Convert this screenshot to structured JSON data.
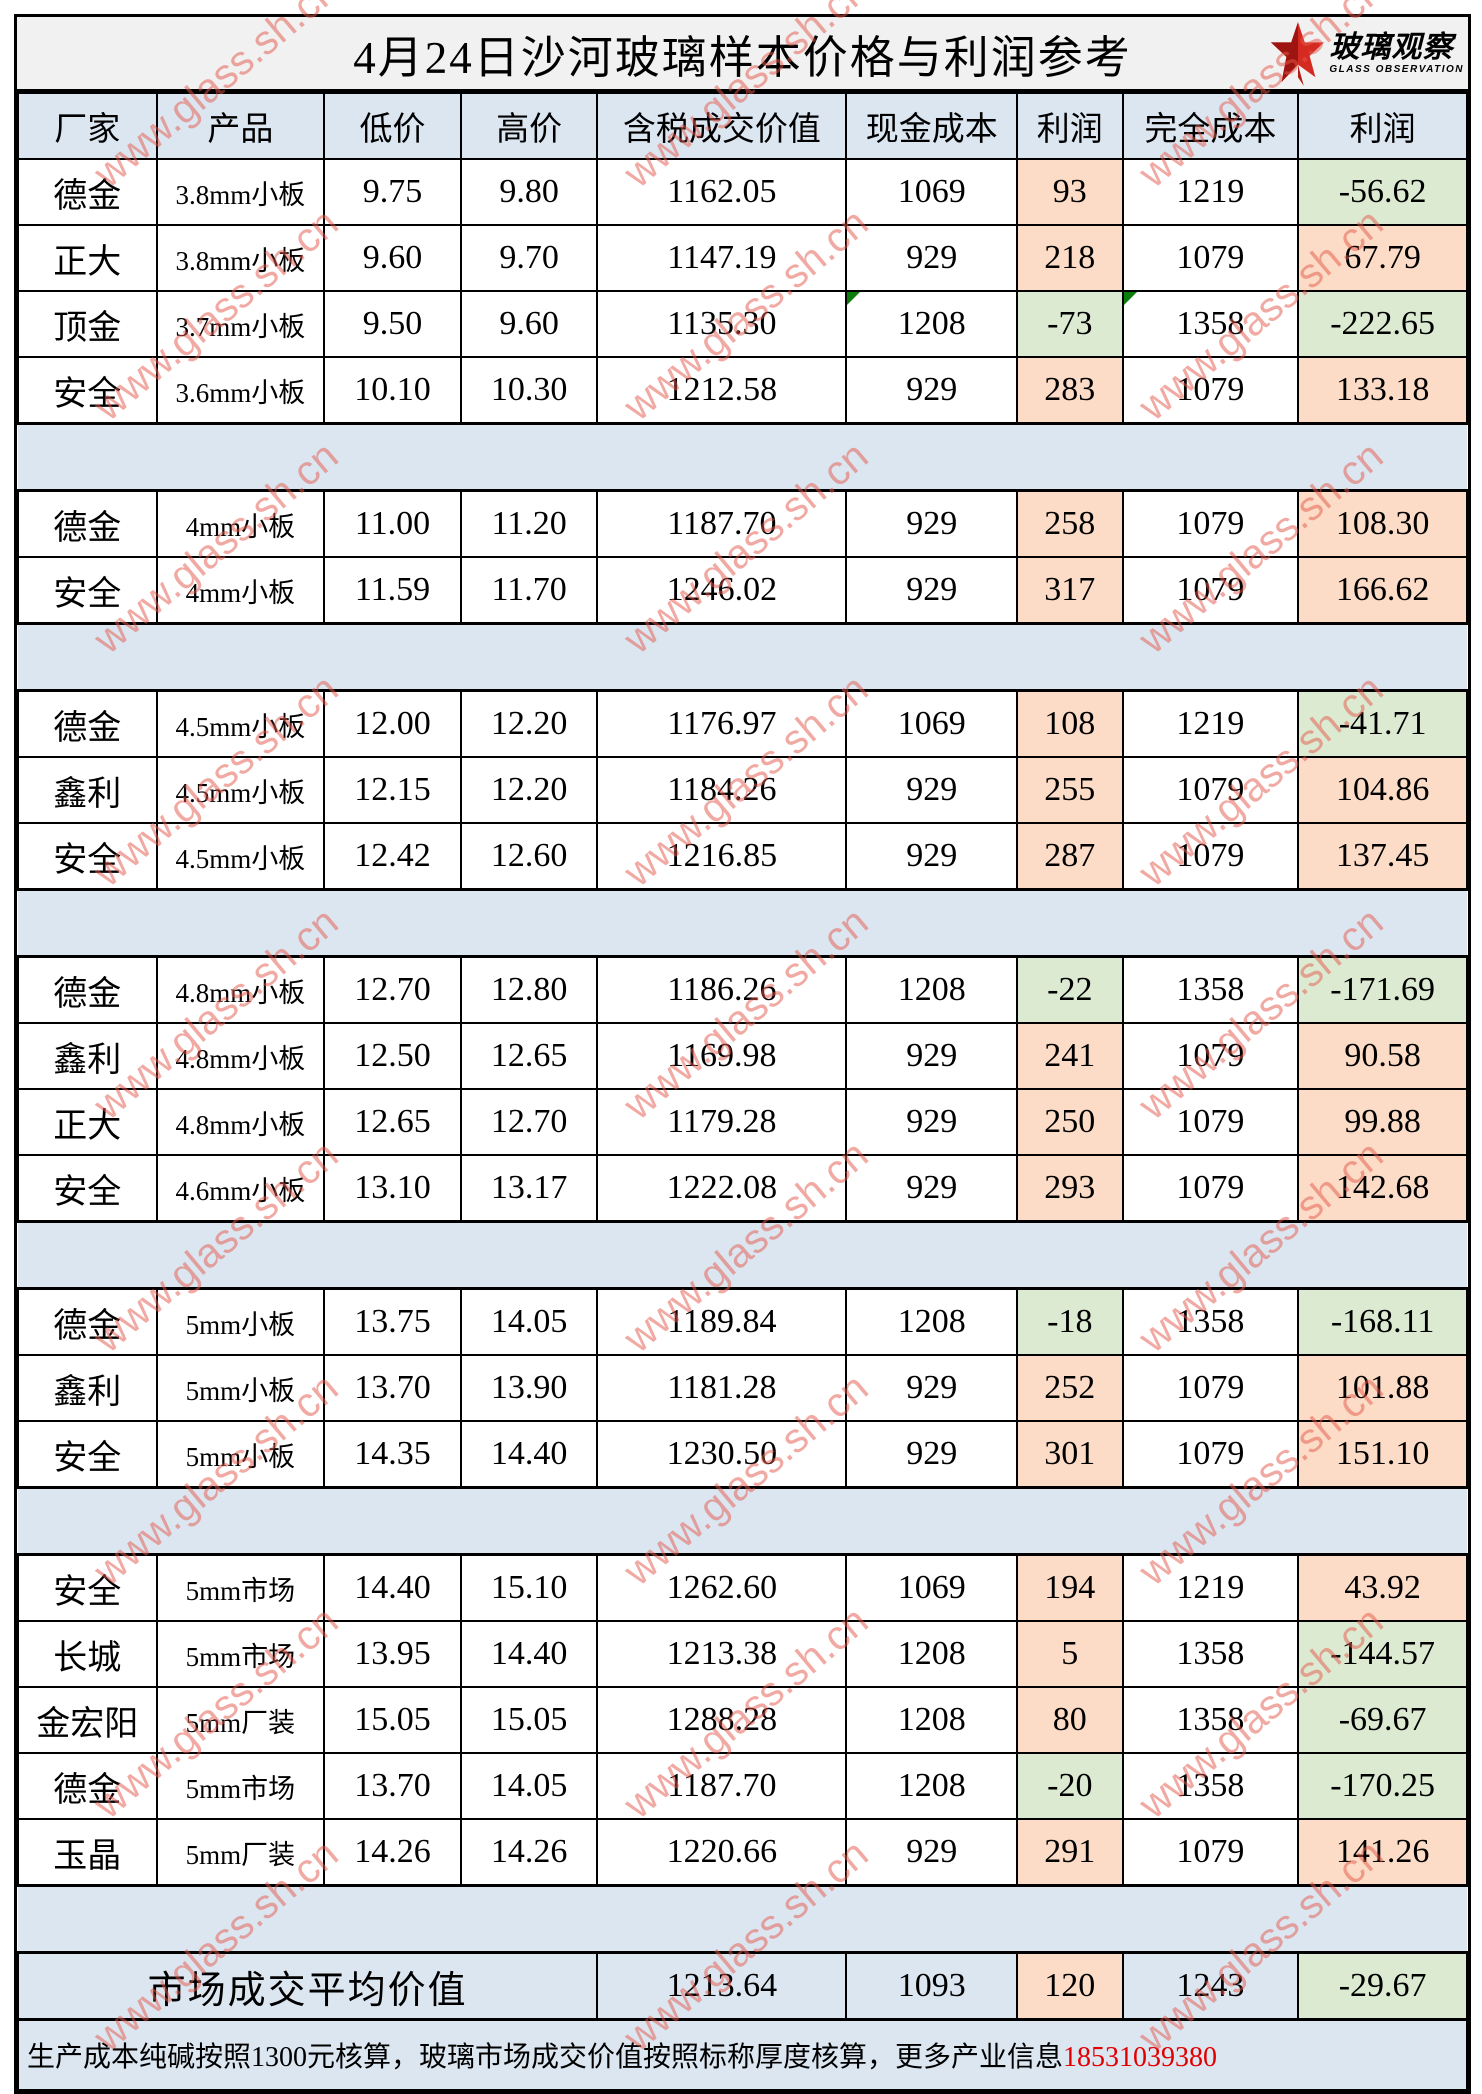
{
  "title": "4月24日沙河玻璃样本价格与利润参考",
  "logo": {
    "cn": "玻璃观察",
    "en": "GLASS OBSERVATION"
  },
  "watermark": {
    "text": "www.glass.sh.cn",
    "color": "#e4584a"
  },
  "palette": {
    "header_bg": "#dce6f1",
    "separator_bg": "#dce6f1",
    "title_bg": "#f1f1f1",
    "positive_profit_bg": "#fcdcc6",
    "negative_profit_bg": "#dcead2",
    "comment_flag_green": "#0a7d0a",
    "phone_red": "#e00000",
    "logo_red": "#d42a22"
  },
  "columns": [
    "厂家",
    "产品",
    "低价",
    "高价",
    "含税成交价值",
    "现金成本",
    "利润",
    "完全成本",
    "利润"
  ],
  "sections": [
    {
      "rows": [
        {
          "cells": [
            "德金",
            "3.8mm小板",
            "9.75",
            "9.80",
            "1162.05",
            "1069",
            "93",
            "1219",
            "-56.62"
          ]
        },
        {
          "cells": [
            "正大",
            "3.8mm小板",
            "9.60",
            "9.70",
            "1147.19",
            "929",
            "218",
            "1079",
            "67.79"
          ]
        },
        {
          "cells": [
            "顶金",
            "3.7mm小板",
            "9.50",
            "9.60",
            "1135.30",
            "1208",
            "-73",
            "1358",
            "-222.65"
          ],
          "marks": [
            5,
            7
          ]
        },
        {
          "cells": [
            "安全",
            "3.6mm小板",
            "10.10",
            "10.30",
            "1212.58",
            "929",
            "283",
            "1079",
            "133.18"
          ]
        }
      ]
    },
    {
      "rows": [
        {
          "cells": [
            "德金",
            "4mm小板",
            "11.00",
            "11.20",
            "1187.70",
            "929",
            "258",
            "1079",
            "108.30"
          ]
        },
        {
          "cells": [
            "安全",
            "4mm小板",
            "11.59",
            "11.70",
            "1246.02",
            "929",
            "317",
            "1079",
            "166.62"
          ]
        }
      ]
    },
    {
      "rows": [
        {
          "cells": [
            "德金",
            "4.5mm小板",
            "12.00",
            "12.20",
            "1176.97",
            "1069",
            "108",
            "1219",
            "-41.71"
          ]
        },
        {
          "cells": [
            "鑫利",
            "4.5mm小板",
            "12.15",
            "12.20",
            "1184.26",
            "929",
            "255",
            "1079",
            "104.86"
          ]
        },
        {
          "cells": [
            "安全",
            "4.5mm小板",
            "12.42",
            "12.60",
            "1216.85",
            "929",
            "287",
            "1079",
            "137.45"
          ]
        }
      ]
    },
    {
      "rows": [
        {
          "cells": [
            "德金",
            "4.8mm小板",
            "12.70",
            "12.80",
            "1186.26",
            "1208",
            "-22",
            "1358",
            "-171.69"
          ]
        },
        {
          "cells": [
            "鑫利",
            "4.8mm小板",
            "12.50",
            "12.65",
            "1169.98",
            "929",
            "241",
            "1079",
            "90.58"
          ]
        },
        {
          "cells": [
            "正大",
            "4.8mm小板",
            "12.65",
            "12.70",
            "1179.28",
            "929",
            "250",
            "1079",
            "99.88"
          ]
        },
        {
          "cells": [
            "安全",
            "4.6mm小板",
            "13.10",
            "13.17",
            "1222.08",
            "929",
            "293",
            "1079",
            "142.68"
          ]
        }
      ]
    },
    {
      "rows": [
        {
          "cells": [
            "德金",
            "5mm小板",
            "13.75",
            "14.05",
            "1189.84",
            "1208",
            "-18",
            "1358",
            "-168.11"
          ]
        },
        {
          "cells": [
            "鑫利",
            "5mm小板",
            "13.70",
            "13.90",
            "1181.28",
            "929",
            "252",
            "1079",
            "101.88"
          ]
        },
        {
          "cells": [
            "安全",
            "5mm小板",
            "14.35",
            "14.40",
            "1230.50",
            "929",
            "301",
            "1079",
            "151.10"
          ]
        }
      ]
    },
    {
      "rows": [
        {
          "cells": [
            "安全",
            "5mm市场",
            "14.40",
            "15.10",
            "1262.60",
            "1069",
            "194",
            "1219",
            "43.92"
          ]
        },
        {
          "cells": [
            "长城",
            "5mm市场",
            "13.95",
            "14.40",
            "1213.38",
            "1208",
            "5",
            "1358",
            "-144.57"
          ]
        },
        {
          "cells": [
            "金宏阳",
            "5mm厂装",
            "15.05",
            "15.05",
            "1288.28",
            "1208",
            "80",
            "1358",
            "-69.67"
          ]
        },
        {
          "cells": [
            "德金",
            "5mm市场",
            "13.70",
            "14.05",
            "1187.70",
            "1208",
            "-20",
            "1358",
            "-170.25"
          ]
        },
        {
          "cells": [
            "玉晶",
            "5mm厂装",
            "14.26",
            "14.26",
            "1220.66",
            "929",
            "291",
            "1079",
            "141.26"
          ]
        }
      ]
    }
  ],
  "summary": {
    "label": "市场成交平均价值",
    "taxed_value": "1213.64",
    "cash_cost": "1093",
    "profit_cash": "120",
    "full_cost": "1243",
    "profit_full": "-29.67"
  },
  "footer": {
    "note": "生产成本纯碱按照1300元核算，玻璃市场成交价值按照标称厚度核算，更多产业信息",
    "phone": "18531039380"
  }
}
